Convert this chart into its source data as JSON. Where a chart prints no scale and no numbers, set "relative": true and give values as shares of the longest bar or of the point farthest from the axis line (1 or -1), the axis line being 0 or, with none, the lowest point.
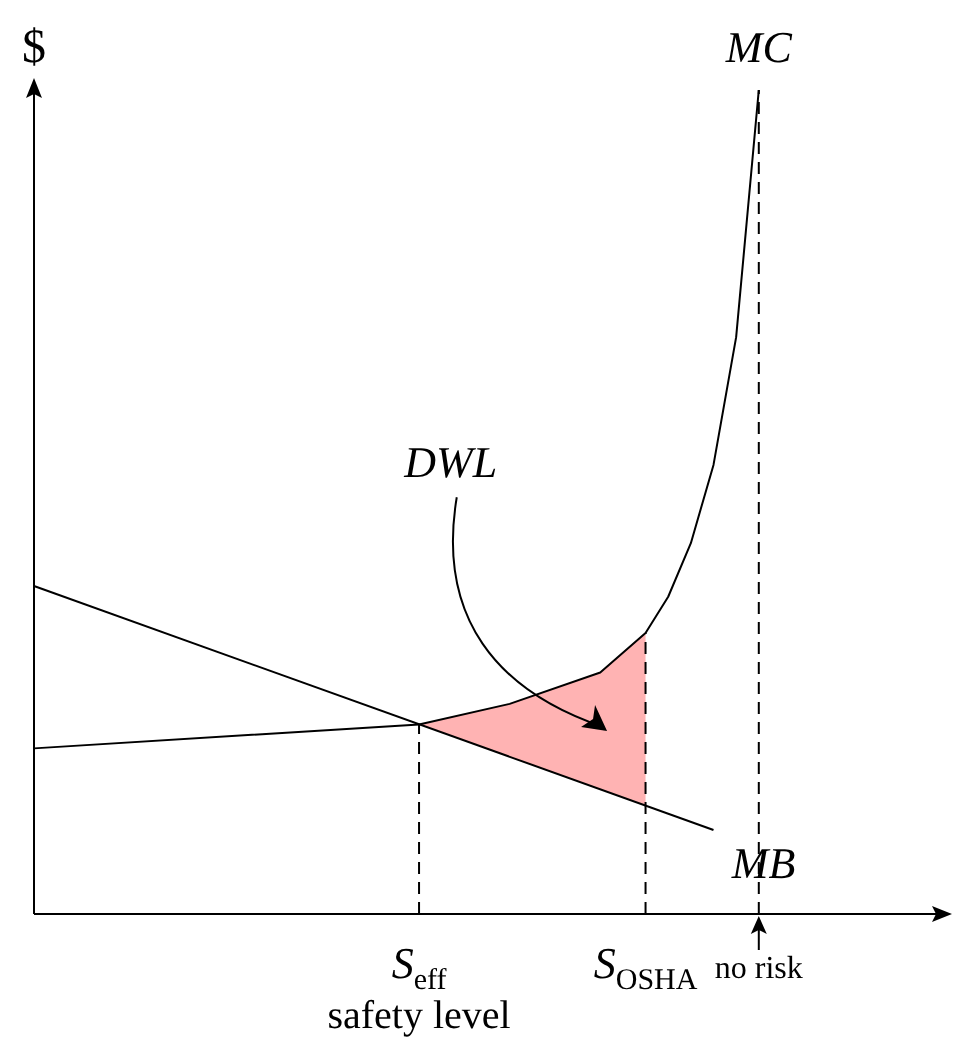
{
  "chart_data": {
    "type": "line",
    "relative": true,
    "ylabel": "$",
    "xlabel": "safety level",
    "categories": [
      null,
      null,
      null,
      null,
      null,
      null,
      null,
      null,
      null,
      null,
      null,
      null,
      null,
      null,
      null,
      null,
      null,
      "S$_{eff}$",
      null,
      null,
      null,
      null,
      null,
      null,
      null,
      null,
      null,
      "S$_{OSHA}$",
      null,
      null,
      null,
      null,
      "no risk",
      null,
      null,
      null,
      null,
      null,
      null,
      null,
      null
    ],
    "marker": "none",
    "series": [
      {
        "name": "MC",
        "color": "#000000",
        "values": [
          0.201,
          null,
          null,
          null,
          null,
          null,
          null,
          null,
          null,
          null,
          null,
          null,
          null,
          null,
          null,
          null,
          null,
          0.23,
          null,
          null,
          null,
          0.255,
          null,
          null,
          null,
          0.293,
          null,
          0.341,
          0.385,
          0.45,
          0.545,
          0.7,
          1.0,
          null,
          null,
          null,
          null,
          null,
          null,
          null,
          null
        ]
      },
      {
        "name": "MB",
        "color": "#000000",
        "values": [
          0.398,
          null,
          null,
          null,
          null,
          null,
          null,
          null,
          null,
          null,
          null,
          null,
          null,
          null,
          null,
          null,
          null,
          null,
          null,
          null,
          null,
          null,
          null,
          null,
          null,
          null,
          null,
          null,
          null,
          null,
          0.102,
          null,
          null,
          null,
          null,
          null,
          null,
          null,
          null,
          null,
          null
        ]
      },
      {
        "type": "area",
        "color": "#ffb3b3",
        "values": [
          null,
          null,
          null,
          null,
          null,
          null,
          null,
          null,
          null,
          null,
          null,
          null,
          null,
          null,
          null,
          null,
          null,
          0.23,
          null,
          null,
          null,
          0.255,
          null,
          null,
          null,
          0.293,
          null,
          0.341,
          null,
          null,
          null,
          null,
          null,
          null,
          null,
          null,
          null,
          null,
          null,
          null,
          null
        ]
      }
    ],
    "ref_lines": [
      {
        "axis": "x",
        "value": "S$_{eff}$",
        "line_style": "dashed"
      },
      {
        "axis": "x",
        "value": "S$_{OSHA}$",
        "line_style": "dashed"
      },
      {
        "axis": "x",
        "value": "no risk",
        "line_style": "dashed"
      }
    ],
    "annotations": [
      "DWL"
    ]
  }
}
